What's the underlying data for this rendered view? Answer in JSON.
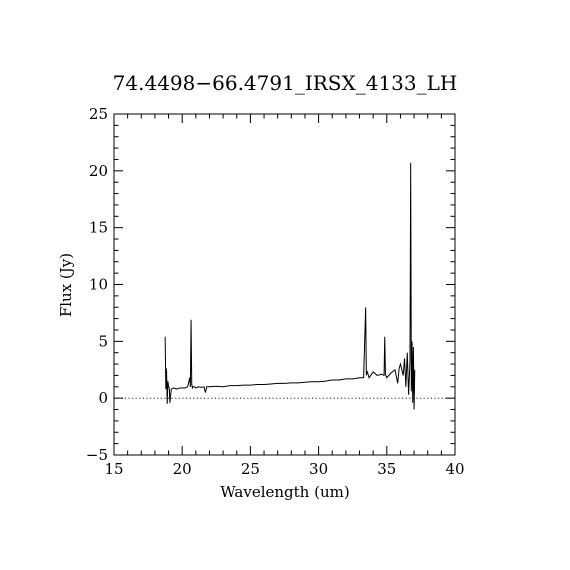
{
  "chart_data": {
    "type": "line",
    "title": "74.4498−66.4791_IRSX_4133_LH",
    "xlabel": "Wavelength (um)",
    "ylabel": "Flux (Jy)",
    "xlim": [
      15,
      40
    ],
    "ylim": [
      -5,
      25
    ],
    "x_ticks": [
      "15",
      "20",
      "25",
      "30",
      "35",
      "40"
    ],
    "y_ticks": [
      "−5",
      "0",
      "5",
      "10",
      "15",
      "20",
      "25"
    ],
    "zero_line": true,
    "series": [
      {
        "x": [
          18.75,
          18.8,
          18.85,
          18.9,
          18.95,
          19.0,
          19.05,
          19.1,
          19.2,
          19.4,
          19.6,
          19.8,
          20.0,
          20.2,
          20.4,
          20.55,
          20.6,
          20.65,
          20.7,
          20.75,
          20.8,
          20.9,
          21.0,
          21.2,
          21.4,
          21.6,
          21.7,
          21.8,
          22.0,
          22.5,
          23.0,
          23.5,
          24.0,
          24.5,
          25.0,
          25.5,
          26.0,
          26.5,
          27.0,
          27.5,
          28.0,
          28.5,
          29.0,
          29.5,
          30.0,
          30.5,
          31.0,
          31.5,
          32.0,
          32.5,
          33.0,
          33.3,
          33.45,
          33.5,
          33.55,
          33.7,
          34.0,
          34.3,
          34.6,
          34.8,
          34.85,
          34.9,
          35.0,
          35.3,
          35.6,
          35.8,
          35.9,
          36.0,
          36.2,
          36.3,
          36.4,
          36.5,
          36.6,
          36.7,
          36.75,
          36.8,
          36.85,
          36.9,
          36.95,
          37.0,
          37.05
        ],
        "y": [
          5.4,
          0.8,
          2.6,
          -0.5,
          1.5,
          1.0,
          0.9,
          -0.4,
          0.8,
          0.9,
          0.8,
          0.9,
          0.9,
          0.9,
          1.0,
          1.8,
          1.0,
          6.9,
          1.2,
          0.9,
          1.0,
          1.0,
          0.9,
          1.0,
          0.95,
          1.0,
          0.5,
          1.0,
          1.0,
          1.05,
          1.0,
          1.1,
          1.1,
          1.15,
          1.15,
          1.2,
          1.2,
          1.25,
          1.3,
          1.3,
          1.35,
          1.35,
          1.4,
          1.45,
          1.45,
          1.5,
          1.6,
          1.6,
          1.7,
          1.7,
          1.8,
          1.8,
          8.0,
          2.0,
          2.4,
          1.8,
          2.3,
          2.0,
          2.1,
          2.0,
          5.4,
          2.1,
          1.8,
          2.2,
          2.5,
          1.3,
          2.6,
          3.0,
          2.0,
          3.5,
          1.0,
          4.0,
          0.3,
          3.2,
          20.7,
          0.6,
          5.0,
          -0.4,
          4.5,
          -1.0,
          2.5
        ]
      }
    ]
  }
}
